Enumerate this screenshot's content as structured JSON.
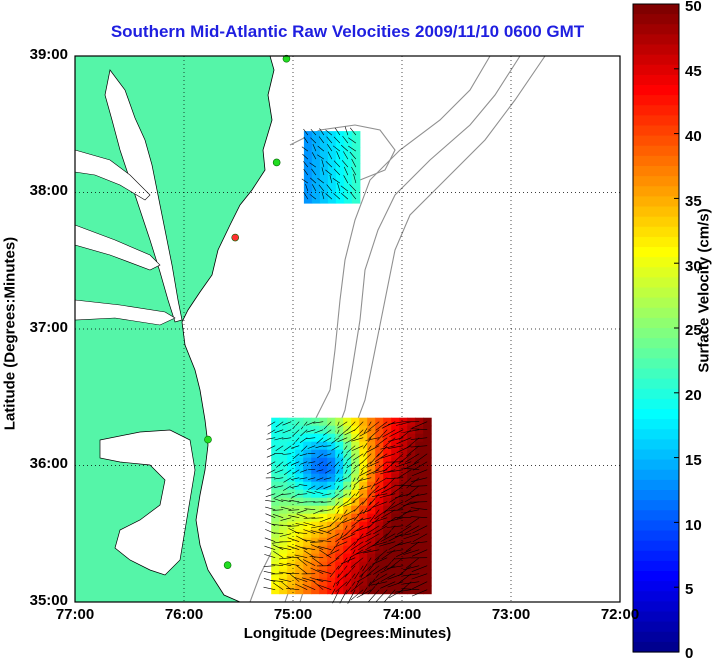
{
  "map": {
    "title": "Southern Mid-Atlantic Raw Velocities 2009/11/10 0600 GMT",
    "xlabel": "Longitude (Degrees:Minutes)",
    "ylabel": "Latitude (Degrees:Minutes)",
    "x_ticks": [
      "77:00",
      "76:00",
      "75:00",
      "74:00",
      "73:00",
      "72:00"
    ],
    "y_ticks": [
      "39:00",
      "38:00",
      "37:00",
      "36:00",
      "35:00"
    ],
    "lon_range": [
      -77,
      -72
    ],
    "lat_range": [
      35,
      39
    ],
    "grid": "dotted",
    "colors": {
      "land": "#55f5a8",
      "water": "#ffffff",
      "bathymetry": "#909090",
      "title": "#1f1fe0"
    }
  },
  "colorbar": {
    "label": "Surface Velocity (cm/s)",
    "ticks": [
      "50",
      "45",
      "40",
      "35",
      "30",
      "25",
      "20",
      "15",
      "10",
      "5",
      "0"
    ],
    "range": [
      0,
      50
    ],
    "colormap": "jet"
  },
  "chart_data": {
    "type": "heatmap",
    "description_fields": "surface current velocity field (cm/s)",
    "regions": [
      {
        "name": "northern patch",
        "lon_range": [
          -74.9,
          -74.4
        ],
        "lat_range": [
          37.95,
          38.45
        ],
        "speed_range": [
          10,
          22
        ]
      },
      {
        "name": "southern patch",
        "lon_range": [
          -75.2,
          -73.8
        ],
        "lat_range": [
          35.1,
          36.35
        ],
        "speed_range": [
          5,
          50
        ]
      }
    ],
    "stations": [
      {
        "lon": -75.06,
        "lat": 38.98,
        "color": "#22dd22"
      },
      {
        "lon": -75.15,
        "lat": 38.22,
        "color": "#22dd22"
      },
      {
        "lon": -75.53,
        "lat": 37.67,
        "color": "#ff3030"
      },
      {
        "lon": -75.78,
        "lat": 36.19,
        "color": "#22dd22"
      },
      {
        "lon": -75.6,
        "lat": 35.27,
        "color": "#22dd22"
      }
    ]
  }
}
